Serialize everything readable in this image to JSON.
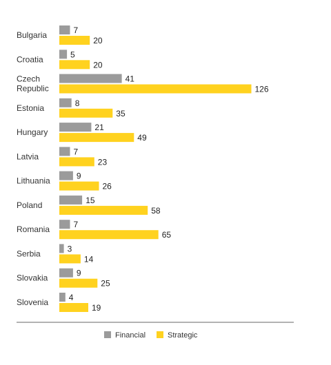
{
  "chart_data": {
    "type": "bar",
    "orientation": "horizontal",
    "categories": [
      "Bulgaria",
      "Croatia",
      "Czech Republic",
      "Estonia",
      "Hungary",
      "Latvia",
      "Lithuania",
      "Poland",
      "Romania",
      "Serbia",
      "Slovakia",
      "Slovenia"
    ],
    "series": [
      {
        "name": "Financial",
        "color": "#9b9b9b",
        "values": [
          7,
          5,
          41,
          8,
          21,
          7,
          9,
          15,
          7,
          3,
          9,
          4
        ]
      },
      {
        "name": "Strategic",
        "color": "#ffd21f",
        "values": [
          20,
          20,
          126,
          35,
          49,
          23,
          26,
          58,
          65,
          14,
          25,
          19
        ]
      }
    ],
    "title": "",
    "xlabel": "",
    "ylabel": "",
    "xlim": [
      0,
      126
    ],
    "grid": false,
    "data_labels": true,
    "legend_position": "bottom-center"
  }
}
